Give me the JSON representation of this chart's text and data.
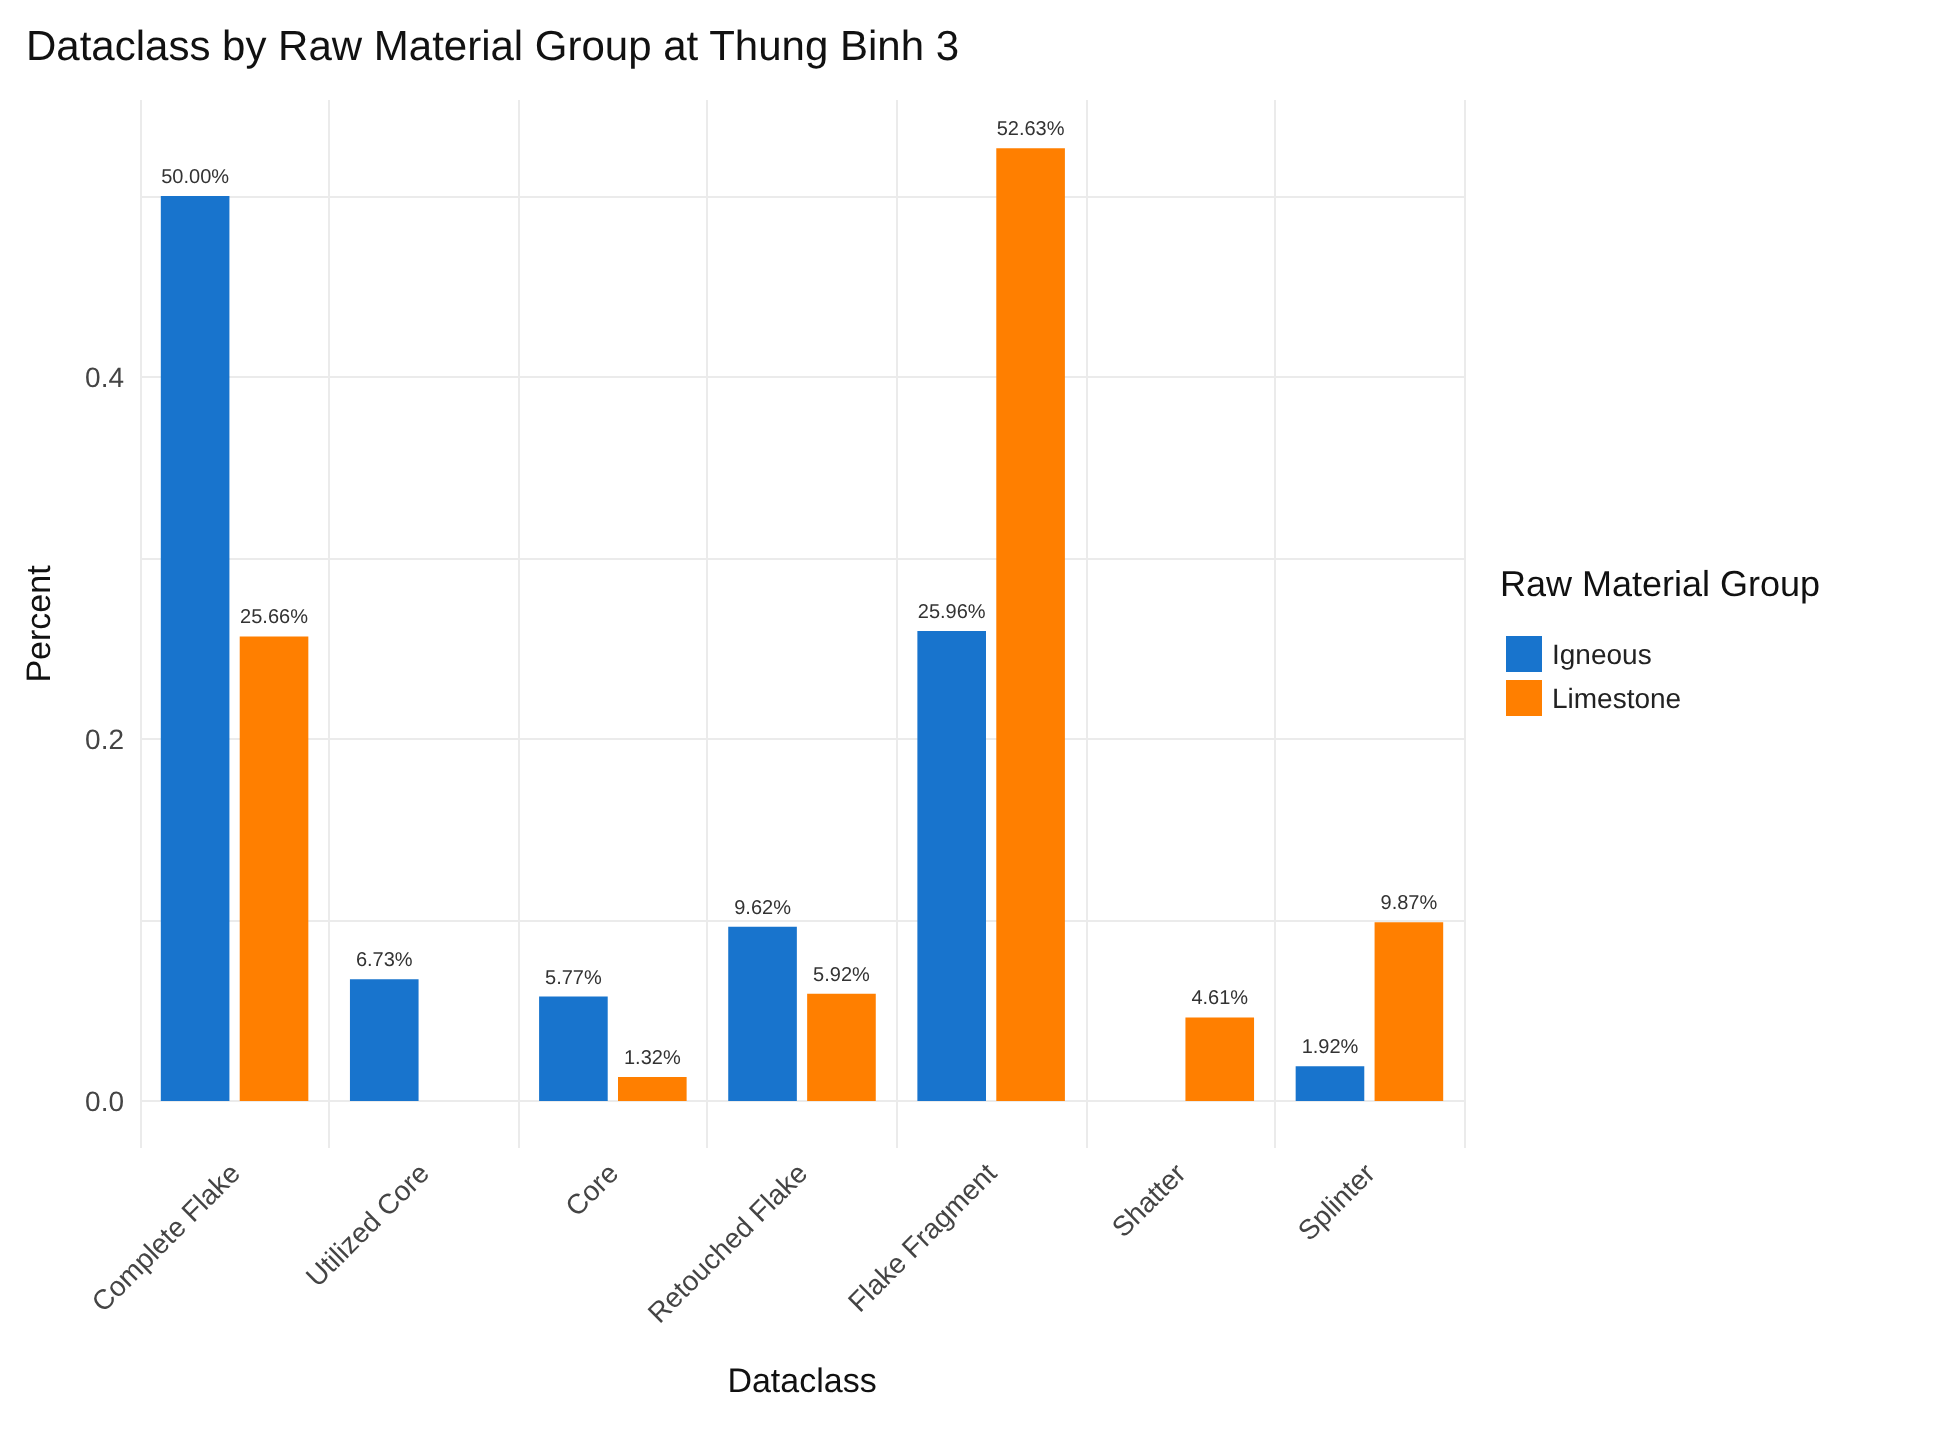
{
  "chart_data": {
    "type": "bar",
    "title": "Dataclass by Raw Material Group at Thung Binh 3",
    "xlabel": "Dataclass",
    "ylabel": "Percent",
    "legend_title": "Raw Material Group",
    "categories": [
      "Complete Flake",
      "Utilized Core",
      "Core",
      "Retouched Flake",
      "Flake Fragment",
      "Shatter",
      "Splinter"
    ],
    "series": [
      {
        "name": "Igneous",
        "color": "#1874cd",
        "values": [
          0.5,
          0.0673,
          0.0577,
          0.0962,
          0.2596,
          null,
          0.0192
        ],
        "value_labels": [
          "50.00%",
          "6.73%",
          "5.77%",
          "9.62%",
          "25.96%",
          null,
          "1.92%"
        ]
      },
      {
        "name": "Limestone",
        "color": "#ff7f00",
        "values": [
          0.2566,
          null,
          0.0132,
          0.0592,
          0.5263,
          0.0461,
          0.0987
        ],
        "value_labels": [
          "25.66%",
          null,
          "1.32%",
          "5.92%",
          "52.63%",
          "4.61%",
          "9.87%"
        ]
      }
    ],
    "ylim": [
      -0.026,
      0.553
    ],
    "yticks": [
      {
        "value": 0,
        "label": "0.0"
      },
      {
        "value": 0.1,
        "label": null
      },
      {
        "value": 0.2,
        "label": "0.2"
      },
      {
        "value": 0.3,
        "label": null
      },
      {
        "value": 0.4,
        "label": "0.4"
      },
      {
        "value": 0.5,
        "label": null
      }
    ],
    "grid": true,
    "legend": "right"
  }
}
